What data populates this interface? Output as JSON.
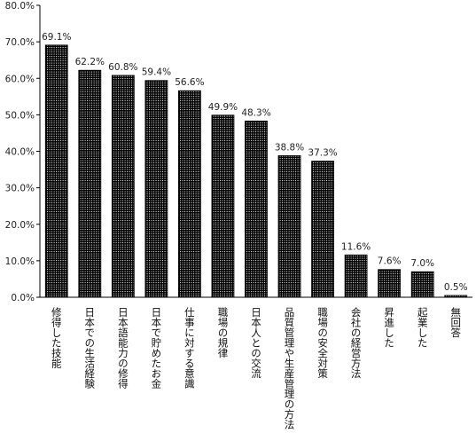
{
  "chart_data": {
    "type": "bar",
    "categories": [
      "修得した技能",
      "日本での生活経験",
      "日本語能力の修得",
      "日本で貯めたお金",
      "仕事に対する意識",
      "職場の規律",
      "日本人との交流",
      "品質管理や生産管理の方法",
      "職場の安全対策",
      "会社の経営方法",
      "昇進した",
      "起業した",
      "無回答"
    ],
    "values": [
      69.1,
      62.2,
      60.8,
      59.4,
      56.6,
      49.9,
      48.3,
      38.8,
      37.3,
      11.6,
      7.6,
      7.0,
      0.5
    ],
    "value_labels": [
      "69.1%",
      "62.2%",
      "60.8%",
      "59.4%",
      "56.6%",
      "49.9%",
      "48.3%",
      "38.8%",
      "37.3%",
      "11.6%",
      "7.6%",
      "7.0%",
      "0.5%"
    ],
    "ylim": [
      0,
      80
    ],
    "y_ticks": [
      0,
      10,
      20,
      30,
      40,
      50,
      60,
      70,
      80
    ],
    "y_tick_labels": [
      "0.0%",
      "10.0%",
      "20.0%",
      "30.0%",
      "40.0%",
      "50.0%",
      "60.0%",
      "70.0%",
      "80.0%"
    ],
    "grid": false,
    "legend": "none",
    "colors": {
      "bar_fill": "#000000",
      "bar_dots": "#ffffff",
      "axis": "#000000"
    }
  }
}
